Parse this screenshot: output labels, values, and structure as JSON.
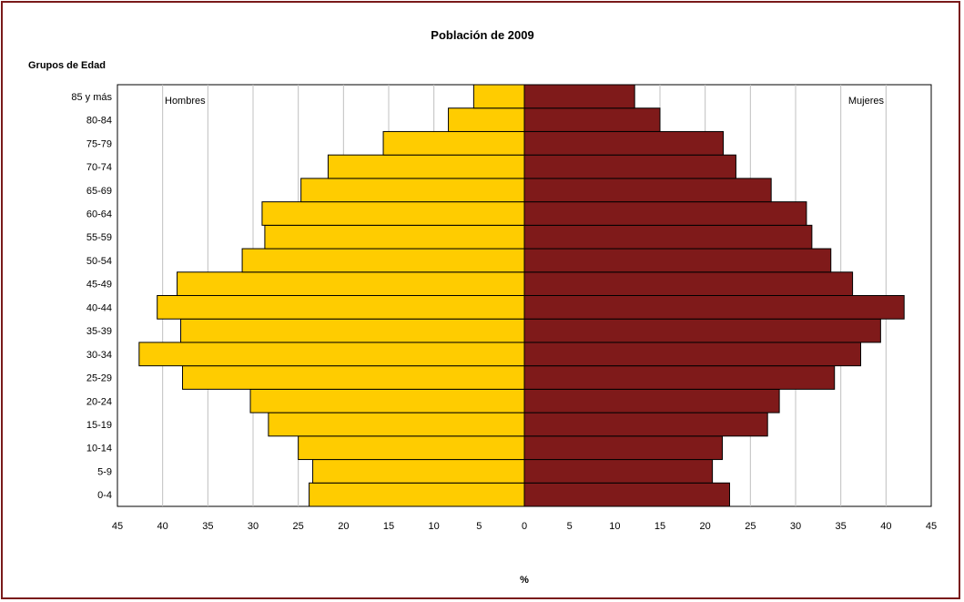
{
  "chart_data": {
    "type": "bar",
    "orientation": "horizontal-population-pyramid",
    "title": "Población de 2009",
    "ylabel": "Grupos de Edad",
    "xlabel": "%",
    "categories": [
      "0-4",
      "5-9",
      "10-14",
      "15-19",
      "20-24",
      "25-29",
      "30-34",
      "35-39",
      "40-44",
      "45-49",
      "50-54",
      "55-59",
      "60-64",
      "65-69",
      "70-74",
      "75-79",
      "80-84",
      "85 y más"
    ],
    "series": [
      {
        "name": "Hombres",
        "color": "#FFCC00",
        "side": "left",
        "values": [
          23.8,
          23.4,
          25.0,
          28.3,
          30.3,
          37.8,
          42.6,
          38.0,
          40.6,
          38.4,
          31.2,
          28.7,
          29.0,
          24.7,
          21.7,
          15.6,
          8.4,
          5.6
        ]
      },
      {
        "name": "Mujeres",
        "color": "#7F1A1A",
        "side": "right",
        "values": [
          22.7,
          20.8,
          21.9,
          26.9,
          28.2,
          34.3,
          37.2,
          39.4,
          42.0,
          36.3,
          33.9,
          31.8,
          31.2,
          27.3,
          23.4,
          22.0,
          15.0,
          12.2
        ]
      }
    ],
    "xlim": [
      -45,
      45
    ],
    "xticks": [
      "45",
      "40",
      "35",
      "30",
      "25",
      "20",
      "15",
      "10",
      "5",
      "0",
      "5",
      "10",
      "15",
      "20",
      "25",
      "30",
      "35",
      "40",
      "45"
    ],
    "grid": "vertical",
    "legend": "in-plot labels top-left and top-right"
  }
}
